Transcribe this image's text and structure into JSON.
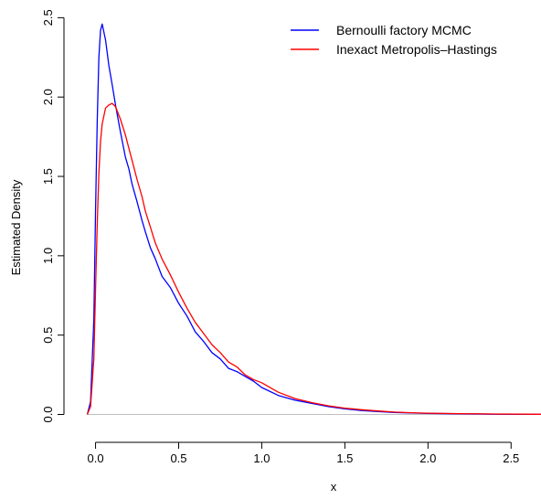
{
  "chart_data": {
    "type": "line",
    "xlabel": "x",
    "ylabel": "Estimated Density",
    "xlim": [
      -0.08,
      2.68
    ],
    "ylim": [
      -0.095,
      2.6
    ],
    "x_ticks": [
      0.0,
      0.5,
      1.0,
      1.5,
      2.0,
      2.5
    ],
    "x_tick_labels": [
      "0.0",
      "0.5",
      "1.0",
      "1.5",
      "2.0",
      "2.5"
    ],
    "y_ticks": [
      0.0,
      0.5,
      1.0,
      1.5,
      2.0,
      2.5
    ],
    "y_tick_labels": [
      "0.0",
      "0.5",
      "1.0",
      "1.5",
      "2.0",
      "2.5"
    ],
    "baseline": 0,
    "legend_position": "top-right",
    "series": [
      {
        "name": "Bernoulli factory MCMC",
        "color": "#0000ff",
        "x": [
          -0.05,
          -0.03,
          -0.01,
          0.0,
          0.01,
          0.02,
          0.03,
          0.04,
          0.06,
          0.08,
          0.1,
          0.12,
          0.15,
          0.18,
          0.2,
          0.22,
          0.25,
          0.28,
          0.3,
          0.33,
          0.36,
          0.4,
          0.45,
          0.5,
          0.55,
          0.6,
          0.65,
          0.7,
          0.75,
          0.8,
          0.85,
          0.9,
          0.95,
          1.0,
          1.1,
          1.2,
          1.3,
          1.4,
          1.5,
          1.6,
          1.7,
          1.8,
          1.9,
          2.0,
          2.2,
          2.4,
          2.6,
          2.68
        ],
        "y": [
          0.0,
          0.08,
          0.6,
          1.3,
          1.85,
          2.25,
          2.42,
          2.46,
          2.36,
          2.2,
          2.08,
          1.95,
          1.78,
          1.62,
          1.55,
          1.45,
          1.34,
          1.22,
          1.15,
          1.05,
          0.98,
          0.87,
          0.8,
          0.7,
          0.62,
          0.52,
          0.46,
          0.39,
          0.35,
          0.29,
          0.27,
          0.24,
          0.21,
          0.17,
          0.12,
          0.09,
          0.07,
          0.05,
          0.035,
          0.025,
          0.018,
          0.012,
          0.009,
          0.007,
          0.004,
          0.002,
          0.001,
          0.001
        ]
      },
      {
        "name": "Inexact Metropolis–Hastings",
        "color": "#ff0000",
        "x": [
          -0.05,
          -0.03,
          -0.01,
          0.0,
          0.01,
          0.02,
          0.03,
          0.04,
          0.06,
          0.08,
          0.1,
          0.12,
          0.15,
          0.18,
          0.2,
          0.22,
          0.25,
          0.28,
          0.3,
          0.33,
          0.36,
          0.4,
          0.45,
          0.5,
          0.55,
          0.6,
          0.65,
          0.7,
          0.75,
          0.8,
          0.85,
          0.9,
          0.95,
          1.0,
          1.1,
          1.2,
          1.3,
          1.4,
          1.5,
          1.6,
          1.7,
          1.8,
          1.9,
          2.0,
          2.2,
          2.4,
          2.6,
          2.68
        ],
        "y": [
          0.0,
          0.05,
          0.35,
          0.8,
          1.2,
          1.52,
          1.72,
          1.83,
          1.93,
          1.95,
          1.96,
          1.94,
          1.86,
          1.76,
          1.68,
          1.6,
          1.48,
          1.37,
          1.28,
          1.18,
          1.08,
          0.98,
          0.88,
          0.77,
          0.67,
          0.58,
          0.51,
          0.44,
          0.39,
          0.33,
          0.3,
          0.25,
          0.22,
          0.2,
          0.14,
          0.1,
          0.075,
          0.055,
          0.04,
          0.03,
          0.022,
          0.015,
          0.011,
          0.008,
          0.005,
          0.003,
          0.002,
          0.001
        ]
      }
    ]
  }
}
